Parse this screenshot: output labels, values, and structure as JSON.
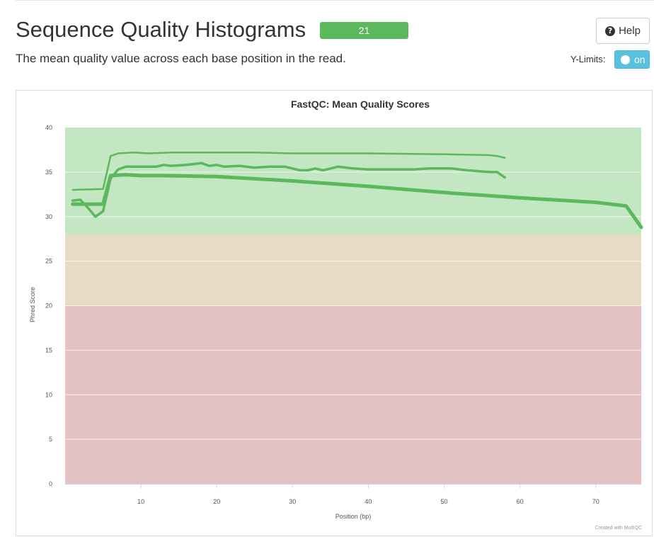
{
  "header": {
    "title": "Sequence Quality Histograms",
    "sample_count": "21",
    "description": "The mean quality value across each base position in the read.",
    "help_label": "Help",
    "ylimits_label": "Y-Limits:",
    "ylimits_toggle": "on"
  },
  "colors": {
    "good_zone": "#c3e6c3",
    "warn_zone": "#e6dcc3",
    "fail_zone": "#e6c3c3",
    "line": "#5cb85c",
    "badge": "#5cb85c",
    "toggle": "#5bc0de"
  },
  "chart_data": {
    "type": "line",
    "title": "FastQC: Mean Quality Scores",
    "xlabel": "Position (bp)",
    "ylabel": "Phred Score",
    "xlim": [
      0,
      76
    ],
    "ylim": [
      0,
      40
    ],
    "x_ticks": [
      10,
      20,
      30,
      40,
      50,
      60,
      70
    ],
    "y_ticks": [
      0,
      5,
      10,
      15,
      20,
      25,
      30,
      35,
      40
    ],
    "grid": true,
    "bands": [
      {
        "from": 28,
        "to": 40,
        "zone": "good"
      },
      {
        "from": 20,
        "to": 28,
        "zone": "warn"
      },
      {
        "from": 0,
        "to": 20,
        "zone": "fail"
      }
    ],
    "credit": "Created with MultiQC",
    "series": [
      {
        "width": 2.5,
        "points": [
          [
            1,
            33.0
          ],
          [
            5,
            33.1
          ],
          [
            6,
            36.8
          ],
          [
            7,
            37.1
          ],
          [
            9,
            37.2
          ],
          [
            11,
            37.1
          ],
          [
            14,
            37.2
          ],
          [
            18,
            37.2
          ],
          [
            25,
            37.2
          ],
          [
            30,
            37.1
          ],
          [
            40,
            37.1
          ],
          [
            50,
            37.0
          ],
          [
            56,
            36.9
          ],
          [
            57,
            36.8
          ],
          [
            58,
            36.6
          ]
        ]
      },
      {
        "width": 3.5,
        "points": [
          [
            1,
            31.8
          ],
          [
            2,
            31.9
          ],
          [
            3,
            31.0
          ],
          [
            4,
            30.0
          ],
          [
            5,
            30.6
          ],
          [
            6,
            34.3
          ],
          [
            7,
            35.3
          ],
          [
            8,
            35.6
          ],
          [
            10,
            35.6
          ],
          [
            12,
            35.6
          ],
          [
            13,
            35.8
          ],
          [
            14,
            35.7
          ],
          [
            16,
            35.8
          ],
          [
            18,
            36.0
          ],
          [
            19,
            35.7
          ],
          [
            20,
            35.8
          ],
          [
            21,
            35.6
          ],
          [
            23,
            35.7
          ],
          [
            25,
            35.5
          ],
          [
            27,
            35.6
          ],
          [
            29,
            35.6
          ],
          [
            30,
            35.4
          ],
          [
            31,
            35.2
          ],
          [
            32,
            35.2
          ],
          [
            33,
            35.4
          ],
          [
            34,
            35.2
          ],
          [
            36,
            35.6
          ],
          [
            38,
            35.4
          ],
          [
            40,
            35.3
          ],
          [
            43,
            35.3
          ],
          [
            46,
            35.3
          ],
          [
            48,
            35.4
          ],
          [
            51,
            35.4
          ],
          [
            53,
            35.2
          ],
          [
            56,
            35.0
          ],
          [
            57,
            35.0
          ],
          [
            58,
            34.4
          ]
        ]
      },
      {
        "width": 5,
        "points": [
          [
            1,
            31.4
          ],
          [
            5,
            31.4
          ],
          [
            6,
            34.6
          ],
          [
            8,
            34.7
          ],
          [
            10,
            34.6
          ],
          [
            13,
            34.6
          ],
          [
            20,
            34.5
          ],
          [
            30,
            34.0
          ],
          [
            40,
            33.4
          ],
          [
            50,
            32.7
          ],
          [
            60,
            32.1
          ],
          [
            70,
            31.6
          ],
          [
            74,
            31.2
          ],
          [
            76,
            28.8
          ]
        ]
      }
    ]
  }
}
